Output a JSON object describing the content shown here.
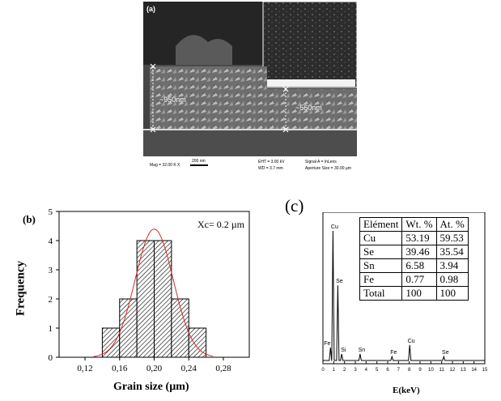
{
  "panel_a": {
    "label": "(a)",
    "thickness_left": "~950nm",
    "thickness_right": "~560nm",
    "info": {
      "mag": "Mag =  32.00 K X",
      "scale": "200 nm",
      "eht": "EHT =  3.00 kV",
      "wd": "WD =  3.7 mm",
      "signal": "Signal A = InLens",
      "aperture": "Aperture Size = 30.00 µm"
    }
  },
  "panel_b": {
    "label": "(b)",
    "xc": "Xc= 0.2 µm",
    "xlabel": "Grain size (µm)",
    "ylabel": "Frequency"
  },
  "panel_c": {
    "label": "(c)",
    "xlabel": "E(keV)",
    "table": {
      "headers": [
        "Elément",
        "Wt. %",
        "At. %"
      ],
      "rows": [
        [
          "Cu",
          "53.19",
          "59.53"
        ],
        [
          "Se",
          "39.46",
          "35.54"
        ],
        [
          "Sn",
          "6.58",
          "3.94"
        ],
        [
          "Fe",
          "0.77",
          "0.98"
        ],
        [
          "Total",
          "100",
          "100"
        ]
      ]
    }
  },
  "chart_data": [
    {
      "type": "bar",
      "xlabel": "Grain size (µm)",
      "ylabel": "Frequency",
      "bins": [
        [
          0.14,
          0.16
        ],
        [
          0.16,
          0.18
        ],
        [
          0.18,
          0.2
        ],
        [
          0.2,
          0.22
        ],
        [
          0.22,
          0.24
        ],
        [
          0.24,
          0.26
        ]
      ],
      "values": [
        1,
        2,
        4,
        4,
        2,
        1
      ],
      "xticks": [
        "0,12",
        "0,16",
        "0,20",
        "0,24",
        "0,28"
      ],
      "yticks": [
        "0",
        "1",
        "2",
        "3",
        "4",
        "5"
      ],
      "xlim": [
        0.09,
        0.31
      ],
      "ylim": [
        0,
        5
      ],
      "fit": "gaussian",
      "fit_color": "#d42a2a"
    },
    {
      "type": "line",
      "xlabel": "E(keV)",
      "xticks": [
        "0",
        "1",
        "2",
        "3",
        "4",
        "5",
        "6",
        "7",
        "8",
        "9",
        "10",
        "11",
        "12",
        "13",
        "14",
        "15"
      ],
      "xlim": [
        0,
        15
      ],
      "peaks": [
        {
          "label": "Cu",
          "x": 0.93,
          "y": 100
        },
        {
          "label": "Se",
          "x": 1.38,
          "y": 58
        },
        {
          "label": "Fe",
          "x": 0.7,
          "y": 10
        },
        {
          "label": "Si",
          "x": 1.74,
          "y": 5
        },
        {
          "label": "Sn",
          "x": 3.44,
          "y": 5
        },
        {
          "label": "Fe",
          "x": 6.4,
          "y": 3
        },
        {
          "label": "Cu",
          "x": 8.04,
          "y": 12
        },
        {
          "label": "Se",
          "x": 11.2,
          "y": 3
        }
      ]
    }
  ]
}
